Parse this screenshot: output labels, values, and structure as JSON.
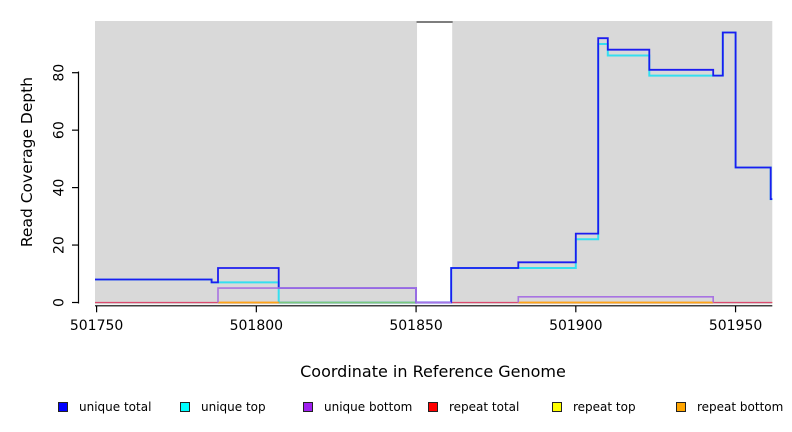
{
  "figure_kind": "R step plot of read coverage",
  "legend": [
    {
      "label": "unique total",
      "color": "#0000ff"
    },
    {
      "label": "unique top",
      "color": "#00ffff"
    },
    {
      "label": "unique bottom",
      "color": "#a020f0"
    },
    {
      "label": "repeat total",
      "color": "#ff0000"
    },
    {
      "label": "repeat top",
      "color": "#ffff00"
    },
    {
      "label": "repeat bottom",
      "color": "#ffa500"
    }
  ],
  "chart_data": {
    "type": "line",
    "subtype": "step",
    "title": "",
    "xlabel": "Coordinate in Reference Genome",
    "ylabel": "Read Coverage Depth",
    "xlim": [
      501749.5,
      501961.5
    ],
    "ylim": [
      0,
      98
    ],
    "x_ticks": [
      501750,
      501800,
      501850,
      501900,
      501950
    ],
    "y_ticks": [
      0,
      20,
      40,
      60,
      80
    ],
    "grid": false,
    "legend_position": "bottom",
    "plot_bg": "#d9d9d9",
    "masked_region": {
      "x0": 501850.3,
      "x1": 501861.3,
      "fill": "#ffffff",
      "top_border": "#7e7e7e"
    },
    "series": [
      {
        "name": "unique total",
        "legend_color": "#0000ff",
        "line_color": "#1c1cf0",
        "width": 1.8,
        "segments": [
          [
            [
              501749.5,
              8
            ],
            [
              501786,
              8
            ],
            [
              501786,
              7
            ],
            [
              501788,
              7
            ],
            [
              501788,
              12
            ],
            [
              501807,
              12
            ],
            [
              501807,
              5
            ],
            [
              501850,
              5
            ],
            [
              501850,
              0
            ],
            [
              501861,
              0
            ],
            [
              501861,
              12
            ],
            [
              501882,
              12
            ],
            [
              501882,
              14
            ],
            [
              501900,
              14
            ],
            [
              501900,
              24
            ],
            [
              501907,
              24
            ],
            [
              501907,
              92
            ],
            [
              501910,
              92
            ],
            [
              501910,
              88
            ],
            [
              501923,
              88
            ],
            [
              501923,
              81
            ],
            [
              501943,
              81
            ],
            [
              501943,
              79
            ],
            [
              501946,
              79
            ],
            [
              501946,
              94
            ],
            [
              501950,
              94
            ],
            [
              501950,
              47
            ],
            [
              501961,
              47
            ],
            [
              501961,
              36
            ],
            [
              501961.5,
              36
            ]
          ]
        ]
      },
      {
        "name": "unique top",
        "legend_color": "#00ffff",
        "line_color": "#35dff0",
        "width": 2.0,
        "segments": [
          [
            [
              501749.5,
              8
            ],
            [
              501786,
              8
            ],
            [
              501786,
              7
            ],
            [
              501807,
              7
            ],
            [
              501807,
              0
            ],
            [
              501861,
              0
            ],
            [
              501861,
              12
            ],
            [
              501900,
              12
            ],
            [
              501900,
              22
            ],
            [
              501907,
              22
            ],
            [
              501907,
              90
            ],
            [
              501910,
              90
            ],
            [
              501910,
              86
            ],
            [
              501923,
              86
            ],
            [
              501923,
              79
            ],
            [
              501946,
              79
            ],
            [
              501946,
              94
            ],
            [
              501950,
              94
            ],
            [
              501950,
              47
            ],
            [
              501961,
              47
            ],
            [
              501961,
              36
            ],
            [
              501961.5,
              36
            ]
          ]
        ]
      },
      {
        "name": "unique bottom",
        "legend_color": "#a020f0",
        "line_color": "#a873e2",
        "width": 1.6,
        "segments": [
          [
            [
              501788,
              0
            ],
            [
              501788,
              5
            ],
            [
              501850,
              5
            ],
            [
              501850,
              0
            ],
            [
              501861,
              0
            ]
          ],
          [
            [
              501882,
              0
            ],
            [
              501882,
              2
            ],
            [
              501943,
              2
            ],
            [
              501943,
              0
            ]
          ]
        ]
      },
      {
        "name": "repeat total",
        "legend_color": "#ff0000",
        "line_color": "#dc4a6e",
        "width": 1.2,
        "segments": [
          [
            [
              501749.5,
              0
            ],
            [
              501961.5,
              0
            ]
          ]
        ]
      },
      {
        "name": "repeat top",
        "legend_color": "#ffff00",
        "line_color": "#ffee00",
        "width": 1.0,
        "segments": [
          [
            [
              501749.5,
              0
            ],
            [
              501961.5,
              0
            ]
          ]
        ]
      },
      {
        "name": "repeat bottom",
        "legend_color": "#ffa500",
        "line_color": "#ffa417",
        "width": 1.8,
        "segments": [
          [
            [
              501788,
              0
            ],
            [
              501807,
              0
            ]
          ],
          [
            [
              501882,
              0
            ],
            [
              501943,
              0
            ]
          ]
        ]
      }
    ],
    "overlap_artifacts": [
      {
        "desc": "unique-top at depth 0 renders as pale green over baseline",
        "color": "#7cc87c",
        "width": 1.5,
        "points": [
          [
            501807,
            0
          ],
          [
            501850,
            0
          ]
        ]
      }
    ],
    "draw_order": [
      "repeat top",
      "unique top",
      "repeat total",
      "__artifact0",
      "repeat bottom",
      "unique total",
      "unique bottom"
    ]
  }
}
